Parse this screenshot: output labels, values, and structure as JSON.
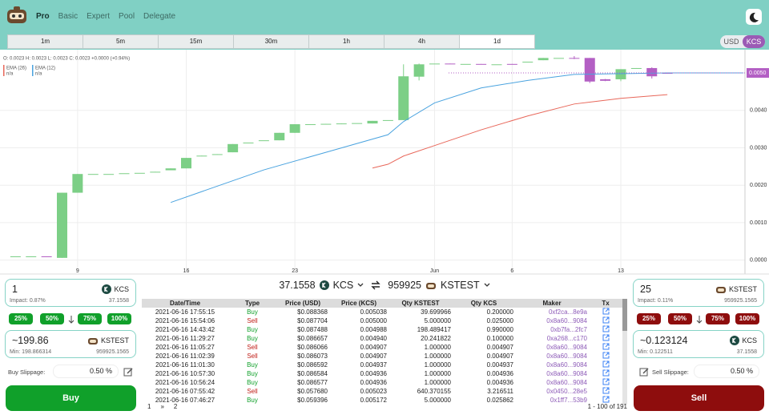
{
  "nav": {
    "tabs": [
      "Pro",
      "Basic",
      "Expert",
      "Pool",
      "Delegate"
    ],
    "active": 0
  },
  "timeframes": {
    "options": [
      "1m",
      "5m",
      "15m",
      "30m",
      "1h",
      "4h",
      "1d"
    ],
    "active": 6
  },
  "currency": {
    "options": [
      "USD",
      "KCS"
    ],
    "active": 1
  },
  "chart_data": {
    "type": "candlestick",
    "ohlc_label": "O: 0.0023 H: 0.0023 L: 0.0023 C: 0.0023 +0.0000 (+0.94%)",
    "up_color": "#7ccf86",
    "down_color": "#b35fc4",
    "x": [
      5,
      6,
      7,
      8,
      9,
      10,
      11,
      12,
      13,
      14,
      15,
      16,
      17,
      18,
      19,
      20,
      21,
      22,
      23,
      24,
      25,
      26,
      27,
      28,
      29,
      30,
      31,
      32,
      33,
      34,
      35,
      36,
      37,
      38,
      39,
      40,
      41,
      42,
      43,
      44,
      45,
      46,
      47
    ],
    "open": [
      0.0001,
      0.0001,
      0.0001,
      6e-05,
      0.0018,
      0.0023,
      0.0023,
      0.00232,
      0.00233,
      0.00235,
      0.0024,
      0.00245,
      0.00278,
      0.00282,
      0.00288,
      0.00313,
      0.0032,
      0.0032,
      0.0034,
      0.00363,
      0.00363,
      0.00364,
      0.00366,
      0.00365,
      0.00374,
      0.00374,
      0.0049,
      0.00525,
      0.00525,
      0.00524,
      0.00524,
      0.00523,
      0.00524,
      0.0053,
      0.00534,
      0.0054,
      0.0054,
      0.0054,
      0.00483,
      0.00483,
      0.00512,
      0.00513,
      0.005
    ],
    "high": [
      0.0001,
      0.0001,
      0.0001,
      0.0018,
      0.0023,
      0.0023,
      0.0023,
      0.00232,
      0.00233,
      0.00236,
      0.00245,
      0.00273,
      0.00279,
      0.00283,
      0.0031,
      0.00314,
      0.0032,
      0.0034,
      0.00363,
      0.00363,
      0.00364,
      0.00365,
      0.00366,
      0.00372,
      0.00374,
      0.00523,
      0.00525,
      0.00525,
      0.00525,
      0.00524,
      0.00524,
      0.00523,
      0.00524,
      0.0053,
      0.0054,
      0.0054,
      0.00545,
      0.0054,
      0.00484,
      0.0051,
      0.00513,
      0.00515,
      0.005
    ],
    "low": [
      0.0001,
      0.0001,
      9e-05,
      6e-05,
      0.0018,
      0.0023,
      0.0023,
      0.00232,
      0.00233,
      0.00235,
      0.0024,
      0.00245,
      0.00278,
      0.00282,
      0.00288,
      0.00313,
      0.0032,
      0.0032,
      0.0034,
      0.00363,
      0.00363,
      0.00364,
      0.00366,
      0.00365,
      0.00374,
      0.00374,
      0.0048,
      0.00525,
      0.00524,
      0.00524,
      0.00523,
      0.00523,
      0.00523,
      0.0053,
      0.00534,
      0.0054,
      0.00537,
      0.00473,
      0.00478,
      0.00478,
      0.00512,
      0.00485,
      0.00498
    ],
    "close": [
      0.0001,
      0.0001,
      9e-05,
      0.0018,
      0.0023,
      0.0023,
      0.0023,
      0.00232,
      0.00233,
      0.00236,
      0.00245,
      0.00273,
      0.00279,
      0.00283,
      0.0031,
      0.00314,
      0.0032,
      0.0034,
      0.00363,
      0.00363,
      0.00364,
      0.00365,
      0.00366,
      0.00372,
      0.00374,
      0.00491,
      0.00523,
      0.00525,
      0.00524,
      0.00524,
      0.00523,
      0.00523,
      0.00523,
      0.0053,
      0.0054,
      0.0054,
      0.00539,
      0.00477,
      0.00479,
      0.0051,
      0.00513,
      0.00491,
      0.00498
    ],
    "series": [
      {
        "name": "EMA (26)",
        "legend_value": "n/a",
        "color": "#e8675a",
        "x": [
          28,
          29,
          30,
          32,
          35,
          38,
          41,
          44,
          47
        ],
        "values": [
          0.00246,
          0.00256,
          0.00278,
          0.00306,
          0.00348,
          0.00385,
          0.00417,
          0.00432,
          0.00442
        ]
      },
      {
        "name": "EMA (12)",
        "legend_value": "n/a",
        "color": "#4aa3df",
        "x": [
          15,
          21,
          25,
          29,
          30,
          32,
          35,
          38,
          41,
          44,
          47,
          51.9
        ],
        "values": [
          0.00154,
          0.00241,
          0.00288,
          0.00335,
          0.0037,
          0.0042,
          0.0046,
          0.0048,
          0.00496,
          0.00498,
          0.005,
          0.005
        ]
      }
    ],
    "last_price": {
      "value": 0.005,
      "label": "0.0050"
    },
    "xlim": [
      4,
      52
    ],
    "ylim": [
      -0.0002,
      0.0056
    ],
    "xticks": [
      9,
      16,
      23,
      {
        "value": 32,
        "label": "Jun"
      },
      {
        "value": 37,
        "label": "6"
      },
      {
        "value": 44,
        "label": "13"
      }
    ],
    "yticks": [
      {
        "value": 0,
        "label": "0.0000"
      },
      {
        "value": 0.001,
        "label": "0.0010"
      },
      {
        "value": 0.002,
        "label": "0.0020"
      },
      {
        "value": 0.003,
        "label": "0.0030"
      },
      {
        "value": 0.004,
        "label": "0.0040"
      }
    ],
    "grid": true
  },
  "pair": {
    "base_amount": "37.1558",
    "base": "KCS",
    "quote_amount": "959925",
    "quote": "KSTEST"
  },
  "buy": {
    "input": "1",
    "input_token": "KCS",
    "impact": "Impact: 0.87%",
    "input_balance": "37.1558",
    "percents": [
      "25%",
      "50%",
      "75%",
      "100%"
    ],
    "output": "~199.86",
    "output_token": "KSTEST",
    "min": "Min: 198.866314",
    "output_balance": "959925.1565",
    "slippage_label": "Buy Slippage:",
    "slippage": "0.50 %",
    "button": "Buy"
  },
  "sell": {
    "input": "25",
    "input_token": "KSTEST",
    "impact": "Impact: 0.11%",
    "input_balance": "959925.1565",
    "percents": [
      "25%",
      "50%",
      "75%",
      "100%"
    ],
    "output": "~0.123124",
    "output_token": "KCS",
    "min": "Min: 0.122511",
    "output_balance": "37.1558",
    "slippage_label": "Sell Slippage:",
    "slippage": "0.50 %",
    "button": "Sell"
  },
  "trades": {
    "headers": [
      "Date/Time",
      "Type",
      "Price (USD)",
      "Price (KCS)",
      "Qty KSTEST",
      "Qty KCS",
      "Maker",
      "Tx"
    ],
    "rows": [
      [
        "2021-06-16 17:55:15",
        "Buy",
        "$0.088368",
        "0.005038",
        "39.699966",
        "0.200000",
        "0xf2ca...8e9a"
      ],
      [
        "2021-06-16 15:54:06",
        "Sell",
        "$0.087704",
        "0.005000",
        "5.000000",
        "0.025000",
        "0x8a60...9084"
      ],
      [
        "2021-06-16 14:43:42",
        "Buy",
        "$0.087488",
        "0.004988",
        "198.489417",
        "0.990000",
        "0xb7fa...2fc7"
      ],
      [
        "2021-06-16 11:29:27",
        "Buy",
        "$0.086657",
        "0.004940",
        "20.241822",
        "0.100000",
        "0xa268...c170"
      ],
      [
        "2021-06-16 11:05:27",
        "Sell",
        "$0.086066",
        "0.004907",
        "1.000000",
        "0.004907",
        "0x8a60...9084"
      ],
      [
        "2021-06-16 11:02:39",
        "Sell",
        "$0.086073",
        "0.004907",
        "1.000000",
        "0.004907",
        "0x8a60...9084"
      ],
      [
        "2021-06-16 11:01:30",
        "Buy",
        "$0.086592",
        "0.004937",
        "1.000000",
        "0.004937",
        "0x8a60...9084"
      ],
      [
        "2021-06-16 10:57:30",
        "Buy",
        "$0.086584",
        "0.004936",
        "1.000000",
        "0.004936",
        "0x8a60...9084"
      ],
      [
        "2021-06-16 10:56:24",
        "Buy",
        "$0.086577",
        "0.004936",
        "1.000000",
        "0.004936",
        "0x8a60...9084"
      ],
      [
        "2021-06-16 07:55:42",
        "Sell",
        "$0.057680",
        "0.005023",
        "640.370155",
        "3.216511",
        "0x0450...28e5"
      ],
      [
        "2021-06-16 07:46:27",
        "Buy",
        "$0.059396",
        "0.005172",
        "5.000000",
        "0.025862",
        "0x1ff7...53b9"
      ]
    ],
    "pagination": [
      "1",
      "»",
      "2"
    ],
    "range": "1 - 100 of 191"
  }
}
